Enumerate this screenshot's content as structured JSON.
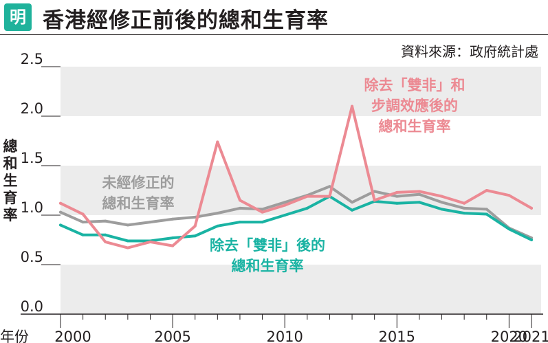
{
  "header": {
    "logo_text": "明",
    "title": "香港經修正前後的總和生育率",
    "source": "資料來源：政府統計處"
  },
  "chart_data": {
    "type": "line",
    "title": "香港經修正前後的總和生育率",
    "xlabel": "年份",
    "ylabel": "總和生育率",
    "ylim": [
      0,
      2.5
    ],
    "xlim": [
      2000,
      2021
    ],
    "yticks": [
      "0.0",
      "0.5",
      "1.0",
      "1.5",
      "2.0",
      "2.5"
    ],
    "xticks": [
      "2000",
      "2005",
      "2010",
      "2015",
      "2020",
      "2021"
    ],
    "grid": "alternating horizontal bands",
    "x": [
      2000,
      2001,
      2002,
      2003,
      2004,
      2005,
      2006,
      2007,
      2008,
      2009,
      2010,
      2011,
      2012,
      2013,
      2014,
      2015,
      2016,
      2017,
      2018,
      2019,
      2020,
      2021
    ],
    "series": [
      {
        "name": "未經修正的總和生育率",
        "color": "#9d9d9d",
        "label_lines": [
          "未經修正的",
          "總和生育率"
        ],
        "values": [
          1.03,
          0.93,
          0.94,
          0.9,
          0.93,
          0.96,
          0.98,
          1.02,
          1.07,
          1.06,
          1.13,
          1.2,
          1.29,
          1.13,
          1.24,
          1.19,
          1.21,
          1.13,
          1.07,
          1.06,
          0.87,
          0.77
        ]
      },
      {
        "name": "除去「雙非」後的總和生育率",
        "color": "#1ab3a3",
        "label_lines": [
          "除去「雙非」後的",
          "總和生育率"
        ],
        "values": [
          0.9,
          0.8,
          0.8,
          0.74,
          0.74,
          0.77,
          0.79,
          0.89,
          0.93,
          0.93,
          1.0,
          1.07,
          1.19,
          1.05,
          1.14,
          1.12,
          1.13,
          1.06,
          1.02,
          1.01,
          0.86,
          0.75
        ]
      },
      {
        "name": "除去「雙非」和步調效應後的總和生育率",
        "color": "#ec8a93",
        "label_lines": [
          "除去「雙非」和",
          "步調效應後的",
          "總和生育率"
        ],
        "values": [
          1.12,
          1.01,
          0.73,
          0.67,
          0.73,
          0.69,
          0.89,
          1.74,
          1.15,
          1.03,
          1.1,
          1.19,
          1.19,
          2.1,
          1.15,
          1.23,
          1.24,
          1.19,
          1.12,
          1.25,
          1.2,
          1.07
        ]
      }
    ]
  }
}
